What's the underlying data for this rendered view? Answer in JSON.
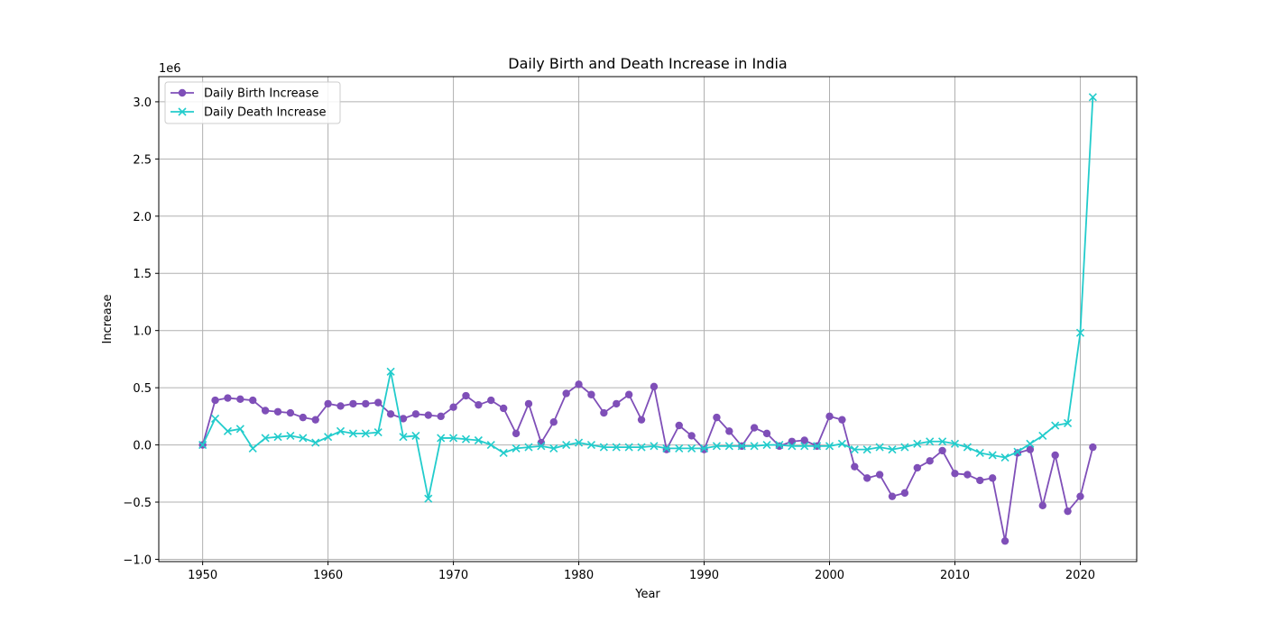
{
  "chart_data": {
    "type": "line",
    "title": "Daily Birth and Death Increase in India",
    "xlabel": "Year",
    "ylabel": "Increase",
    "y_offset_label": "1e6",
    "xlim": [
      1946.5,
      2024.5
    ],
    "ylim": [
      -1.02,
      3.22
    ],
    "x_ticks": [
      1950,
      1960,
      1970,
      1980,
      1990,
      2000,
      2010,
      2020
    ],
    "x_tick_labels": [
      "1950",
      "1960",
      "1970",
      "1980",
      "1990",
      "2000",
      "2010",
      "2020"
    ],
    "y_ticks": [
      -1.0,
      -0.5,
      0.0,
      0.5,
      1.0,
      1.5,
      2.0,
      2.5,
      3.0
    ],
    "y_tick_labels": [
      "−1.0",
      "−0.5",
      "0.0",
      "0.5",
      "1.0",
      "1.5",
      "2.0",
      "2.5",
      "3.0"
    ],
    "grid": true,
    "legend_position": "top-left",
    "x": [
      1950,
      1951,
      1952,
      1953,
      1954,
      1955,
      1956,
      1957,
      1958,
      1959,
      1960,
      1961,
      1962,
      1963,
      1964,
      1965,
      1966,
      1967,
      1968,
      1969,
      1970,
      1971,
      1972,
      1973,
      1974,
      1975,
      1976,
      1977,
      1978,
      1979,
      1980,
      1981,
      1982,
      1983,
      1984,
      1985,
      1986,
      1987,
      1988,
      1989,
      1990,
      1991,
      1992,
      1993,
      1994,
      1995,
      1996,
      1997,
      1998,
      1999,
      2000,
      2001,
      2002,
      2003,
      2004,
      2005,
      2006,
      2007,
      2008,
      2009,
      2010,
      2011,
      2012,
      2013,
      2014,
      2015,
      2016,
      2017,
      2018,
      2019,
      2020,
      2021
    ],
    "series": [
      {
        "name": "Daily Birth Increase",
        "color": "#7f4fb8",
        "marker": "circle",
        "values": [
          0.0,
          0.39,
          0.41,
          0.4,
          0.39,
          0.3,
          0.29,
          0.28,
          0.24,
          0.22,
          0.36,
          0.34,
          0.36,
          0.36,
          0.37,
          0.27,
          0.23,
          0.27,
          0.26,
          0.25,
          0.33,
          0.43,
          0.35,
          0.39,
          0.32,
          0.1,
          0.36,
          0.02,
          0.2,
          0.45,
          0.53,
          0.44,
          0.28,
          0.36,
          0.44,
          0.22,
          0.51,
          -0.04,
          0.17,
          0.08,
          -0.04,
          0.24,
          0.12,
          -0.01,
          0.15,
          0.1,
          -0.01,
          0.03,
          0.04,
          -0.01,
          0.25,
          0.22,
          -0.19,
          -0.29,
          -0.26,
          -0.45,
          -0.42,
          -0.2,
          -0.14,
          -0.05,
          -0.25,
          -0.26,
          -0.31,
          -0.29,
          -0.84,
          -0.07,
          -0.04,
          -0.53,
          -0.09,
          -0.58,
          -0.45,
          -0.02
        ]
      },
      {
        "name": "Daily Death Increase",
        "color": "#22cccc",
        "marker": "x",
        "values": [
          0.0,
          0.23,
          0.12,
          0.14,
          -0.03,
          0.06,
          0.07,
          0.08,
          0.06,
          0.02,
          0.07,
          0.12,
          0.1,
          0.1,
          0.11,
          0.64,
          0.07,
          0.08,
          -0.47,
          0.06,
          0.06,
          0.05,
          0.04,
          0.0,
          -0.07,
          -0.03,
          -0.02,
          -0.01,
          -0.03,
          0.0,
          0.02,
          0.0,
          -0.02,
          -0.02,
          -0.02,
          -0.02,
          -0.01,
          -0.03,
          -0.03,
          -0.03,
          -0.03,
          -0.01,
          -0.01,
          -0.01,
          -0.01,
          0.0,
          0.0,
          -0.01,
          -0.01,
          -0.01,
          -0.01,
          0.01,
          -0.04,
          -0.04,
          -0.02,
          -0.04,
          -0.02,
          0.01,
          0.03,
          0.03,
          0.01,
          -0.02,
          -0.07,
          -0.09,
          -0.11,
          -0.06,
          0.01,
          0.08,
          0.17,
          0.19,
          0.98,
          3.04
        ]
      }
    ]
  }
}
